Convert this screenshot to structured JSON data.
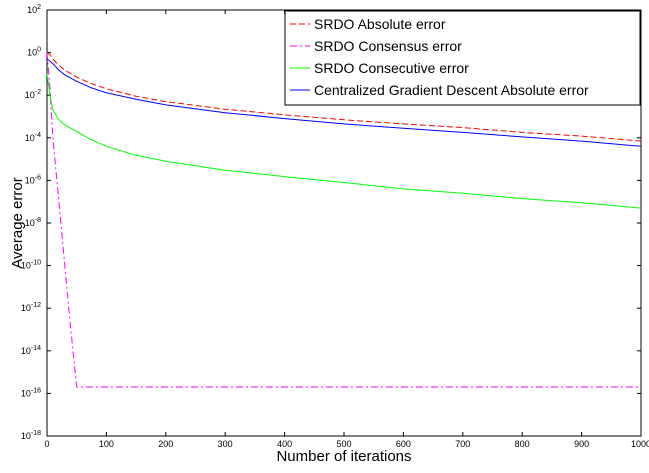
{
  "chart_data": {
    "type": "line",
    "xlabel": "Number of iterations",
    "ylabel": "Average error",
    "xlim": [
      0,
      1000
    ],
    "ylim": [
      1e-18,
      100
    ],
    "yscale": "log",
    "grid": false,
    "legend_position": "top-right",
    "x_ticks": [
      0,
      100,
      200,
      300,
      400,
      500,
      600,
      700,
      800,
      900,
      1000
    ],
    "x_tick_labels": [
      "0",
      "100",
      "200",
      "300",
      "400",
      "500",
      "600",
      "700",
      "800",
      "900",
      "1000"
    ],
    "y_tick_exponents": [
      2,
      0,
      -2,
      -4,
      -6,
      -8,
      -10,
      -12,
      -14,
      -16,
      -18
    ],
    "series": [
      {
        "name": "SRDO Absolute error",
        "color": "#ff0000",
        "style": "dashed",
        "x": [
          0,
          5,
          10,
          20,
          30,
          50,
          75,
          100,
          150,
          200,
          300,
          400,
          500,
          600,
          700,
          800,
          900,
          1000
        ],
        "y": [
          1.0,
          0.8,
          0.5,
          0.25,
          0.15,
          0.07,
          0.035,
          0.02,
          0.009,
          0.005,
          0.0022,
          0.0012,
          0.0007,
          0.00045,
          0.0003,
          0.00018,
          0.00012,
          7e-05
        ]
      },
      {
        "name": "SRDO Consensus error",
        "color": "#ff00ff",
        "style": "dashdot",
        "x": [
          0,
          5,
          10,
          20,
          30,
          40,
          50,
          100,
          200,
          300,
          400,
          500,
          600,
          700,
          800,
          900,
          1000
        ],
        "y": [
          1.0,
          0.02,
          0.0001,
          1e-07,
          1e-10,
          1e-13,
          2e-16,
          2e-16,
          2e-16,
          2e-16,
          2e-16,
          2e-16,
          2e-16,
          2e-16,
          2e-16,
          2e-16,
          2e-16
        ]
      },
      {
        "name": "SRDO Consecutive error",
        "color": "#00ff00",
        "style": "solid",
        "x": [
          0,
          5,
          10,
          20,
          30,
          50,
          75,
          100,
          150,
          200,
          300,
          400,
          500,
          600,
          700,
          800,
          900,
          1000
        ],
        "y": [
          0.1,
          0.01,
          0.002,
          0.0007,
          0.0004,
          0.0002,
          8e-05,
          4e-05,
          1.5e-05,
          8e-06,
          3e-06,
          1.5e-06,
          8e-07,
          4e-07,
          2.5e-07,
          1.4e-07,
          9e-08,
          5e-08
        ]
      },
      {
        "name": "Centralized Gradient Descent Absolute error",
        "color": "#0000ff",
        "style": "solid",
        "x": [
          0,
          5,
          10,
          20,
          30,
          50,
          75,
          100,
          150,
          200,
          300,
          400,
          500,
          600,
          700,
          800,
          900,
          1000
        ],
        "y": [
          0.5,
          0.4,
          0.3,
          0.15,
          0.09,
          0.045,
          0.022,
          0.013,
          0.0065,
          0.0035,
          0.0015,
          0.0008,
          0.00045,
          0.00028,
          0.00018,
          0.00011,
          7e-05,
          4e-05
        ]
      }
    ]
  }
}
